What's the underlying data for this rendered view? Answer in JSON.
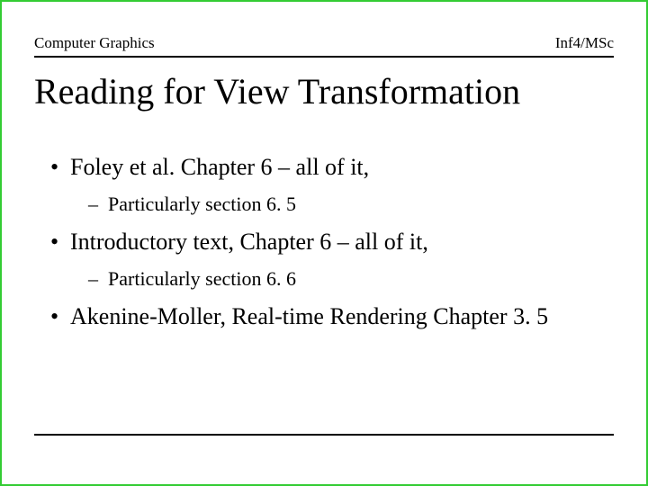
{
  "border_color": "#33cc33",
  "background_color": "#ffffff",
  "text_color": "#000000",
  "rule_color": "#000000",
  "header": {
    "left": "Computer Graphics",
    "right": "Inf4/MSc",
    "fontsize": 17
  },
  "title": {
    "text": "Reading for View Transformation",
    "fontsize": 40
  },
  "bullets": [
    {
      "text": "Foley et al. Chapter 6 – all of it,",
      "sub": [
        {
          "text": "Particularly section 6. 5"
        }
      ]
    },
    {
      "text": "Introductory text, Chapter 6 – all of it,",
      "sub": [
        {
          "text": "Particularly section 6. 6"
        }
      ]
    },
    {
      "text": "Akenine-Moller, Real-time Rendering Chapter 3. 5",
      "sub": []
    }
  ],
  "level1_fontsize": 26,
  "level2_fontsize": 22
}
